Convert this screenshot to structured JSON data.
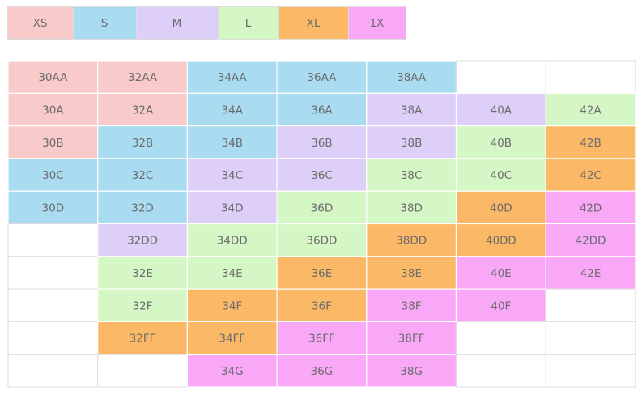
{
  "legend": [
    {
      "label": "XS",
      "color": "#f9caca"
    },
    {
      "label": "S",
      "color": "#a9dcf1"
    },
    {
      "label": "M",
      "color": "#ddcff8"
    },
    {
      "label": "L",
      "color": "#d5f7c6"
    },
    {
      "label": "XL",
      "color": "#fbb968"
    },
    {
      "label": "1X",
      "color": "#f8a8f6"
    }
  ],
  "table": {
    "rows": [
      [
        {
          "text": "30AA",
          "size": "XS"
        },
        {
          "text": "32AA",
          "size": "XS"
        },
        {
          "text": "34AA",
          "size": "S"
        },
        {
          "text": "36AA",
          "size": "S"
        },
        {
          "text": "38AA",
          "size": "S"
        },
        null,
        null
      ],
      [
        {
          "text": "30A",
          "size": "XS"
        },
        {
          "text": "32A",
          "size": "XS"
        },
        {
          "text": "34A",
          "size": "S"
        },
        {
          "text": "36A",
          "size": "S"
        },
        {
          "text": "38A",
          "size": "M"
        },
        {
          "text": "40A",
          "size": "M"
        },
        {
          "text": "42A",
          "size": "L"
        }
      ],
      [
        {
          "text": "30B",
          "size": "XS"
        },
        {
          "text": "32B",
          "size": "S"
        },
        {
          "text": "34B",
          "size": "S"
        },
        {
          "text": "36B",
          "size": "M"
        },
        {
          "text": "38B",
          "size": "M"
        },
        {
          "text": "40B",
          "size": "L"
        },
        {
          "text": "42B",
          "size": "XL"
        }
      ],
      [
        {
          "text": "30C",
          "size": "S"
        },
        {
          "text": "32C",
          "size": "S"
        },
        {
          "text": "34C",
          "size": "M"
        },
        {
          "text": "36C",
          "size": "M"
        },
        {
          "text": "38C",
          "size": "L"
        },
        {
          "text": "40C",
          "size": "L"
        },
        {
          "text": "42C",
          "size": "XL"
        }
      ],
      [
        {
          "text": "30D",
          "size": "S"
        },
        {
          "text": "32D",
          "size": "S"
        },
        {
          "text": "34D",
          "size": "M"
        },
        {
          "text": "36D",
          "size": "L"
        },
        {
          "text": "38D",
          "size": "L"
        },
        {
          "text": "40D",
          "size": "XL"
        },
        {
          "text": "42D",
          "size": "1X"
        }
      ],
      [
        null,
        {
          "text": "32DD",
          "size": "M"
        },
        {
          "text": "34DD",
          "size": "L"
        },
        {
          "text": "36DD",
          "size": "L"
        },
        {
          "text": "38DD",
          "size": "XL"
        },
        {
          "text": "40DD",
          "size": "XL"
        },
        {
          "text": "42DD",
          "size": "1X"
        }
      ],
      [
        null,
        {
          "text": "32E",
          "size": "L"
        },
        {
          "text": "34E",
          "size": "L"
        },
        {
          "text": "36E",
          "size": "XL"
        },
        {
          "text": "38E",
          "size": "XL"
        },
        {
          "text": "40E",
          "size": "1X"
        },
        {
          "text": "42E",
          "size": "1X"
        }
      ],
      [
        null,
        {
          "text": "32F",
          "size": "L"
        },
        {
          "text": "34F",
          "size": "XL"
        },
        {
          "text": "36F",
          "size": "XL"
        },
        {
          "text": "38F",
          "size": "1X"
        },
        {
          "text": "40F",
          "size": "1X"
        },
        null
      ],
      [
        null,
        {
          "text": "32FF",
          "size": "XL"
        },
        {
          "text": "34FF",
          "size": "XL"
        },
        {
          "text": "36FF",
          "size": "1X"
        },
        {
          "text": "38FF",
          "size": "1X"
        },
        null,
        null
      ],
      [
        null,
        null,
        {
          "text": "34G",
          "size": "1X"
        },
        {
          "text": "36G",
          "size": "1X"
        },
        {
          "text": "38G",
          "size": "1X"
        },
        null,
        null
      ]
    ]
  }
}
